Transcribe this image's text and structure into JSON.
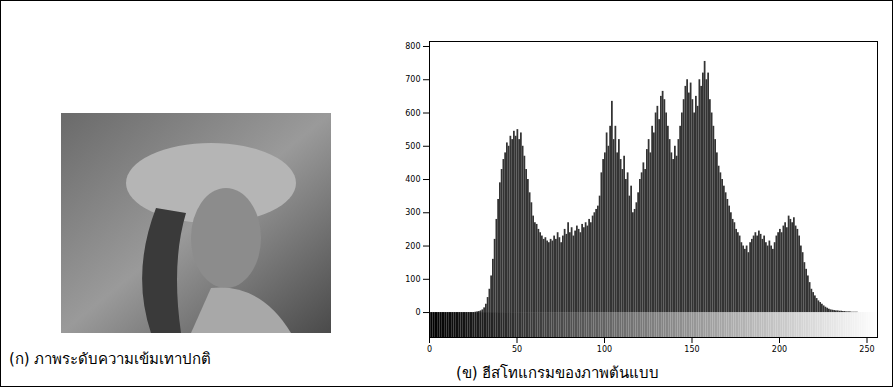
{
  "image": {
    "caption": "(ก) ภาพระดับความเข้มเทาปกติ"
  },
  "chart_data": {
    "type": "histogram",
    "title": "(ข) ฮีสโทแกรมของภาพต้นแบบ",
    "color": "#333333",
    "bins": [
      0,
      1,
      2,
      3,
      4,
      5,
      6,
      7,
      8,
      9,
      10,
      11,
      12,
      13,
      14,
      15,
      16,
      17,
      18,
      19,
      20,
      21,
      22,
      23,
      24,
      25,
      26,
      27,
      28,
      29,
      30,
      31,
      32,
      33,
      34,
      35,
      36,
      37,
      38,
      39,
      40,
      41,
      42,
      43,
      44,
      45,
      46,
      47,
      48,
      49,
      50,
      51,
      52,
      53,
      54,
      55,
      56,
      57,
      58,
      59,
      60,
      61,
      62,
      63,
      64,
      65,
      66,
      67,
      68,
      69,
      70,
      71,
      72,
      73,
      74,
      75,
      76,
      77,
      78,
      79,
      80,
      81,
      82,
      83,
      84,
      85,
      86,
      87,
      88,
      89,
      90,
      91,
      92,
      93,
      94,
      95,
      96,
      97,
      98,
      99,
      100,
      101,
      102,
      103,
      104,
      105,
      106,
      107,
      108,
      109,
      110,
      111,
      112,
      113,
      114,
      115,
      116,
      117,
      118,
      119,
      120,
      121,
      122,
      123,
      124,
      125,
      126,
      127,
      128,
      129,
      130,
      131,
      132,
      133,
      134,
      135,
      136,
      137,
      138,
      139,
      140,
      141,
      142,
      143,
      144,
      145,
      146,
      147,
      148,
      149,
      150,
      151,
      152,
      153,
      154,
      155,
      156,
      157,
      158,
      159,
      160,
      161,
      162,
      163,
      164,
      165,
      166,
      167,
      168,
      169,
      170,
      171,
      172,
      173,
      174,
      175,
      176,
      177,
      178,
      179,
      180,
      181,
      182,
      183,
      184,
      185,
      186,
      187,
      188,
      189,
      190,
      191,
      192,
      193,
      194,
      195,
      196,
      197,
      198,
      199,
      200,
      201,
      202,
      203,
      204,
      205,
      206,
      207,
      208,
      209,
      210,
      211,
      212,
      213,
      214,
      215,
      216,
      217,
      218,
      219,
      220,
      221,
      222,
      223,
      224,
      225,
      226,
      227,
      228,
      229,
      230,
      231,
      232,
      233,
      234,
      235,
      236,
      237,
      238,
      239,
      240,
      241,
      242,
      243,
      244,
      245,
      246,
      247,
      248,
      249,
      250,
      251,
      252,
      253,
      254,
      255,
      256
    ],
    "counts": [
      0,
      0,
      0,
      0,
      0,
      0,
      0,
      0,
      0,
      0,
      0,
      0,
      0,
      0,
      0,
      0,
      0,
      0,
      0,
      0,
      0,
      0,
      0,
      0,
      0,
      0,
      1,
      2,
      3,
      5,
      8,
      14,
      25,
      45,
      70,
      110,
      160,
      220,
      280,
      340,
      390,
      430,
      460,
      480,
      510,
      500,
      530,
      520,
      545,
      530,
      550,
      520,
      540,
      500,
      470,
      430,
      400,
      360,
      330,
      290,
      270,
      265,
      250,
      240,
      230,
      220,
      225,
      215,
      210,
      220,
      215,
      230,
      220,
      240,
      225,
      210,
      230,
      250,
      235,
      270,
      240,
      255,
      230,
      245,
      260,
      250,
      240,
      265,
      255,
      270,
      260,
      280,
      270,
      290,
      300,
      310,
      320,
      350,
      420,
      460,
      480,
      540,
      500,
      560,
      635,
      520,
      560,
      480,
      520,
      460,
      430,
      470,
      400,
      420,
      350,
      380,
      300,
      310,
      330,
      360,
      400,
      420,
      450,
      430,
      490,
      520,
      480,
      560,
      540,
      600,
      620,
      580,
      650,
      665,
      640,
      600,
      560,
      520,
      480,
      460,
      500,
      470,
      520,
      560,
      600,
      640,
      680,
      700,
      660,
      690,
      640,
      600,
      650,
      620,
      700,
      680,
      720,
      755,
      700,
      720,
      640,
      600,
      560,
      520,
      480,
      440,
      420,
      400,
      380,
      360,
      340,
      320,
      300,
      280,
      270,
      250,
      240,
      230,
      210,
      200,
      190,
      200,
      180,
      210,
      220,
      230,
      240,
      230,
      245,
      235,
      220,
      230,
      210,
      200,
      215,
      200,
      190,
      210,
      230,
      240,
      250,
      240,
      260,
      270,
      255,
      290,
      280,
      270,
      285,
      260,
      250,
      230,
      200,
      180,
      150,
      130,
      110,
      90,
      70,
      60,
      50,
      42,
      35,
      30,
      25,
      20,
      16,
      13,
      10,
      8,
      7,
      6,
      5,
      5,
      4,
      4,
      3,
      3,
      2,
      2,
      2,
      1,
      1,
      1,
      1,
      0,
      0,
      0,
      0,
      0,
      0,
      0,
      0,
      0,
      0,
      0
    ],
    "xlim": [
      0,
      256
    ],
    "ylim": [
      -75,
      815
    ],
    "xticks": [
      0,
      50,
      100,
      150,
      200,
      250
    ],
    "yticks": [
      0,
      100,
      200,
      300,
      400,
      500,
      600,
      700,
      800
    ],
    "grid": false
  }
}
